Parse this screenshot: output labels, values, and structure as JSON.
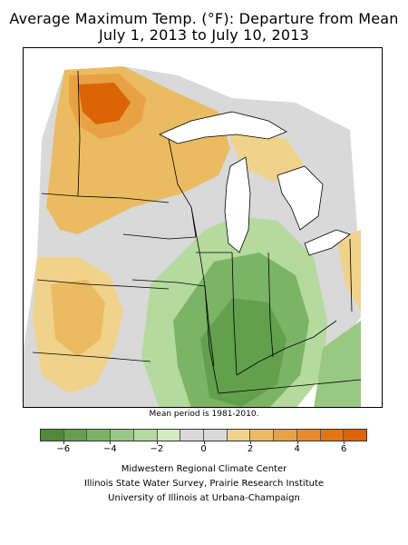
{
  "title_line1": "Average Maximum Temp. (°F): Departure from Mean",
  "title_line2": "July 1, 2013 to July 10, 2013",
  "mean_period_note": "Mean period is 1981-2010.",
  "legend": {
    "bins": [
      {
        "color": "#4f8a3a",
        "range": "< -6"
      },
      {
        "color": "#62a04d",
        "range": "-6 to -5"
      },
      {
        "color": "#7cb466",
        "range": "-5 to -4"
      },
      {
        "color": "#98c882",
        "range": "-4 to -3"
      },
      {
        "color": "#b4da9e",
        "range": "-3 to -2"
      },
      {
        "color": "#d2ecbf",
        "range": "-2 to -1"
      },
      {
        "color": "#d9d9d9",
        "range": "-1 to 0"
      },
      {
        "color": "#d9d9d9",
        "range": "0 to 1"
      },
      {
        "color": "#f1d28a",
        "range": "1 to 2"
      },
      {
        "color": "#ebbb62",
        "range": "2 to 3"
      },
      {
        "color": "#e8a244",
        "range": "3 to 4"
      },
      {
        "color": "#e88a2a",
        "range": "4 to 5"
      },
      {
        "color": "#e57512",
        "range": "5 to 6"
      },
      {
        "color": "#dd6406",
        "range": "> 6"
      }
    ],
    "ticks": [
      {
        "value": -6,
        "label": "−6"
      },
      {
        "value": -4,
        "label": "−4"
      },
      {
        "value": -2,
        "label": "−2"
      },
      {
        "value": 0,
        "label": "0"
      },
      {
        "value": 2,
        "label": "2"
      },
      {
        "value": 4,
        "label": "4"
      },
      {
        "value": 6,
        "label": "6"
      }
    ],
    "min": -7,
    "max": 7
  },
  "credits": {
    "line1": "Midwestern Regional Climate Center",
    "line2": "Illinois State Water Survey, Prairie Research Institute",
    "line3": "University of Illinois at Urbana-Champaign"
  },
  "colors": {
    "warm_strong": "#dd6406",
    "warm_mid": "#e8a244",
    "warm_light": "#f1d28a",
    "neutral": "#d9d9d9",
    "cool_light": "#b4da9e",
    "cool_mid": "#7cb466",
    "cool_strong": "#4f8a3a",
    "water": "#ffffff",
    "boundary": "#000000"
  }
}
